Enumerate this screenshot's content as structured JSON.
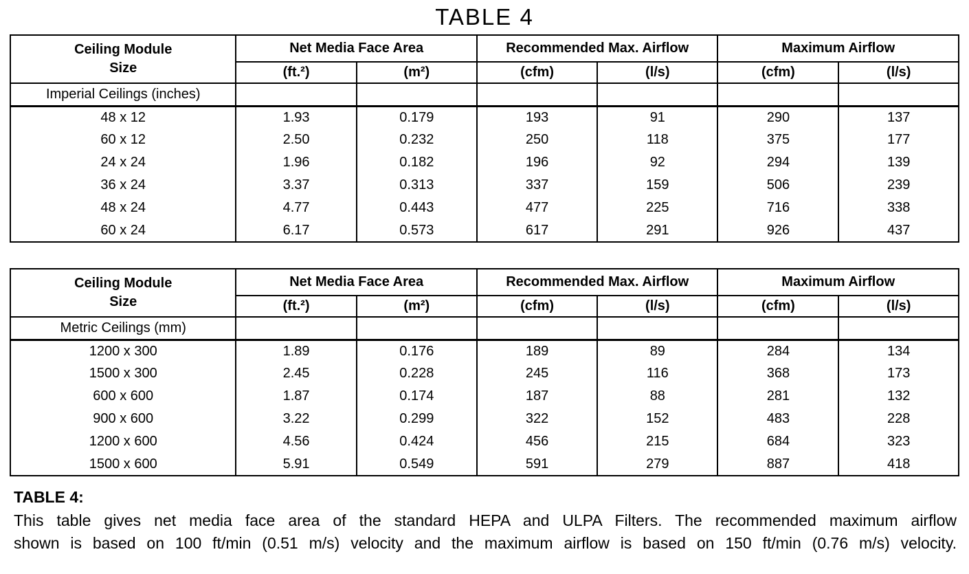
{
  "page_title": "TABLE 4",
  "header": {
    "module_line1": "Ceiling Module",
    "module_line2": "Size",
    "groups": [
      {
        "label": "Net Media Face Area",
        "units": [
          "(ft.²)",
          "(m²)"
        ]
      },
      {
        "label": "Recommended Max. Airflow",
        "units": [
          "(cfm)",
          "(l/s)"
        ]
      },
      {
        "label": "Maximum Airflow",
        "units": [
          "(cfm)",
          "(l/s)"
        ]
      }
    ]
  },
  "tables": [
    {
      "section_label": "Imperial Ceilings (inches)",
      "rows": [
        [
          "48 x 12",
          "1.93",
          "0.179",
          "193",
          "91",
          "290",
          "137"
        ],
        [
          "60 x 12",
          "2.50",
          "0.232",
          "250",
          "118",
          "375",
          "177"
        ],
        [
          "24 x 24",
          "1.96",
          "0.182",
          "196",
          "92",
          "294",
          "139"
        ],
        [
          "36 x 24",
          "3.37",
          "0.313",
          "337",
          "159",
          "506",
          "239"
        ],
        [
          "48 x 24",
          "4.77",
          "0.443",
          "477",
          "225",
          "716",
          "338"
        ],
        [
          "60 x 24",
          "6.17",
          "0.573",
          "617",
          "291",
          "926",
          "437"
        ]
      ]
    },
    {
      "section_label": "Metric Ceilings (mm)",
      "rows": [
        [
          "1200 x 300",
          "1.89",
          "0.176",
          "189",
          "89",
          "284",
          "134"
        ],
        [
          "1500 x 300",
          "2.45",
          "0.228",
          "245",
          "116",
          "368",
          "173"
        ],
        [
          "600 x 600",
          "1.87",
          "0.174",
          "187",
          "88",
          "281",
          "132"
        ],
        [
          "900 x 600",
          "3.22",
          "0.299",
          "322",
          "152",
          "483",
          "228"
        ],
        [
          "1200 x 600",
          "4.56",
          "0.424",
          "456",
          "215",
          "684",
          "323"
        ],
        [
          "1500 x 600",
          "5.91",
          "0.549",
          "591",
          "279",
          "887",
          "418"
        ]
      ]
    }
  ],
  "caption": {
    "label": "TABLE 4:",
    "lines": [
      "This table gives net media face area of the standard HEPA and ULPA Filters. The recommended maximum airflow",
      "shown is based on 100 ft/min (0.51 m/s) velocity and the maximum airflow is based on 150 ft/min (0.76 m/s) velocity."
    ]
  },
  "colors": {
    "text": "#000000",
    "background": "#ffffff",
    "border": "#000000"
  }
}
